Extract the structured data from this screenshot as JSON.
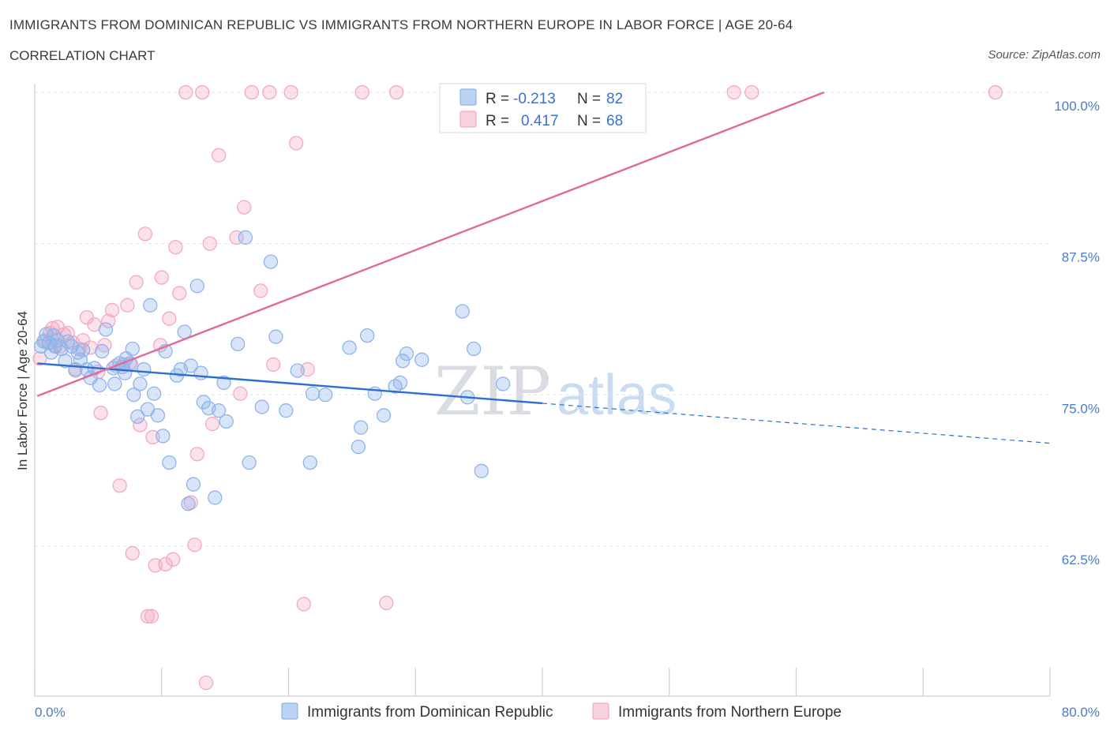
{
  "header": {
    "title": "IMMIGRANTS FROM DOMINICAN REPUBLIC VS IMMIGRANTS FROM NORTHERN EUROPE IN LABOR FORCE | AGE 20-64",
    "subtitle": "CORRELATION CHART",
    "source": "Source: ZipAtlas.com"
  },
  "watermark": {
    "zip": "ZIP",
    "atlas": "atlas"
  },
  "stats": {
    "r_label": "R =",
    "n_label": "N =",
    "rows": [
      {
        "r": "-0.213",
        "n": "82",
        "color": "#8fb4ea"
      },
      {
        "r": "0.417",
        "n": "68",
        "color": "#f2a9c3"
      }
    ]
  },
  "legend": [
    {
      "label": "Immigrants from Dominican Republic",
      "color": "#8fb4ea"
    },
    {
      "label": "Immigrants from Northern Europe",
      "color": "#f2a9c3"
    }
  ],
  "chart_data": {
    "type": "scatter",
    "ylabel": "In Labor Force | Age 20-64",
    "xlim": [
      0,
      80
    ],
    "ylim": [
      50,
      100
    ],
    "x_tick_labels": [
      {
        "v": 0,
        "label": "0.0%"
      },
      {
        "v": 80,
        "label": "80.0%"
      }
    ],
    "y_tick_labels": [
      {
        "v": 100,
        "label": "100.0%"
      },
      {
        "v": 87.5,
        "label": "87.5%"
      },
      {
        "v": 75,
        "label": "75.0%"
      },
      {
        "v": 62.5,
        "label": "62.5%"
      }
    ],
    "grid": true,
    "legend_position": "bottom",
    "series": [
      {
        "name": "Immigrants from Dominican Republic",
        "color": "#8fb4ea",
        "line_color": "#2d6fd0",
        "trend": {
          "x0": 0.2,
          "y0": 77.6,
          "x1": 40,
          "y1": 74.3,
          "dash_to_x": 80,
          "dash_to_y": 71.0
        },
        "points": [
          [
            0.5,
            79.0
          ],
          [
            0.7,
            79.4
          ],
          [
            0.9,
            80.0
          ],
          [
            1.1,
            79.3
          ],
          [
            1.3,
            78.5
          ],
          [
            1.5,
            79.9
          ],
          [
            1.6,
            79.0
          ],
          [
            1.8,
            79.5
          ],
          [
            2.1,
            78.8
          ],
          [
            2.4,
            77.8
          ],
          [
            2.6,
            79.4
          ],
          [
            2.9,
            79.0
          ],
          [
            3.2,
            77.1
          ],
          [
            3.4,
            78.5
          ],
          [
            3.6,
            77.9
          ],
          [
            3.8,
            78.7
          ],
          [
            4.1,
            77.1
          ],
          [
            4.4,
            76.4
          ],
          [
            4.7,
            77.2
          ],
          [
            5.1,
            75.8
          ],
          [
            5.3,
            78.6
          ],
          [
            5.6,
            80.4
          ],
          [
            6.2,
            77.2
          ],
          [
            6.3,
            75.9
          ],
          [
            6.7,
            77.6
          ],
          [
            6.9,
            77.3
          ],
          [
            7.1,
            76.8
          ],
          [
            7.2,
            78.0
          ],
          [
            7.5,
            77.6
          ],
          [
            7.7,
            78.8
          ],
          [
            7.8,
            75.0
          ],
          [
            8.1,
            73.2
          ],
          [
            8.3,
            75.9
          ],
          [
            8.6,
            77.1
          ],
          [
            8.9,
            73.8
          ],
          [
            9.1,
            82.4
          ],
          [
            9.4,
            75.1
          ],
          [
            9.7,
            73.3
          ],
          [
            10.1,
            71.6
          ],
          [
            10.3,
            78.6
          ],
          [
            10.6,
            69.4
          ],
          [
            11.2,
            76.6
          ],
          [
            11.5,
            77.1
          ],
          [
            11.8,
            80.2
          ],
          [
            12.1,
            66.0
          ],
          [
            12.3,
            77.4
          ],
          [
            12.5,
            67.6
          ],
          [
            12.8,
            84.0
          ],
          [
            13.1,
            76.8
          ],
          [
            13.3,
            74.4
          ],
          [
            13.7,
            73.9
          ],
          [
            14.2,
            66.5
          ],
          [
            14.5,
            73.7
          ],
          [
            14.9,
            76.0
          ],
          [
            15.1,
            72.8
          ],
          [
            16.0,
            79.2
          ],
          [
            16.6,
            88.0
          ],
          [
            16.9,
            69.4
          ],
          [
            17.9,
            74.0
          ],
          [
            18.6,
            86.0
          ],
          [
            19.0,
            79.8
          ],
          [
            19.8,
            73.7
          ],
          [
            20.7,
            77.0
          ],
          [
            21.7,
            69.4
          ],
          [
            21.9,
            75.1
          ],
          [
            22.9,
            75.0
          ],
          [
            24.8,
            78.9
          ],
          [
            25.5,
            70.7
          ],
          [
            25.7,
            72.3
          ],
          [
            26.2,
            79.9
          ],
          [
            26.8,
            75.1
          ],
          [
            27.5,
            73.3
          ],
          [
            28.4,
            75.7
          ],
          [
            28.8,
            76.0
          ],
          [
            29.0,
            77.8
          ],
          [
            29.3,
            78.4
          ],
          [
            30.5,
            77.9
          ],
          [
            33.7,
            81.9
          ],
          [
            34.1,
            74.8
          ],
          [
            34.6,
            78.8
          ],
          [
            35.2,
            68.7
          ],
          [
            36.9,
            75.9
          ]
        ]
      },
      {
        "name": "Immigrants from Northern Europe",
        "color": "#f2a9c3",
        "line_color": "#e06b96",
        "trend": {
          "x0": 0.2,
          "y0": 74.9,
          "x1": 62.2,
          "y1": 100
        },
        "points": [
          [
            0.4,
            78.0
          ],
          [
            0.8,
            79.5
          ],
          [
            1.2,
            80.1
          ],
          [
            1.4,
            80.5
          ],
          [
            1.6,
            79.1
          ],
          [
            1.8,
            80.6
          ],
          [
            2.0,
            79.0
          ],
          [
            2.3,
            80.0
          ],
          [
            2.6,
            80.1
          ],
          [
            3.0,
            79.3
          ],
          [
            3.2,
            77.0
          ],
          [
            3.5,
            78.8
          ],
          [
            3.8,
            79.5
          ],
          [
            4.1,
            81.4
          ],
          [
            4.4,
            78.9
          ],
          [
            4.7,
            80.8
          ],
          [
            5.0,
            76.9
          ],
          [
            5.2,
            73.5
          ],
          [
            5.5,
            79.1
          ],
          [
            5.8,
            81.1
          ],
          [
            6.1,
            82.0
          ],
          [
            6.4,
            77.4
          ],
          [
            6.7,
            67.5
          ],
          [
            7.0,
            77.5
          ],
          [
            7.3,
            82.4
          ],
          [
            7.6,
            77.5
          ],
          [
            7.7,
            61.9
          ],
          [
            8.0,
            84.3
          ],
          [
            8.3,
            72.5
          ],
          [
            8.7,
            88.3
          ],
          [
            8.9,
            56.7
          ],
          [
            9.3,
            71.5
          ],
          [
            9.5,
            60.9
          ],
          [
            9.9,
            79.1
          ],
          [
            10.0,
            84.7
          ],
          [
            10.3,
            61.0
          ],
          [
            10.6,
            81.3
          ],
          [
            10.9,
            61.4
          ],
          [
            11.1,
            87.2
          ],
          [
            11.4,
            83.4
          ],
          [
            11.9,
            100.0
          ],
          [
            12.3,
            66.1
          ],
          [
            12.6,
            62.6
          ],
          [
            12.8,
            70.1
          ],
          [
            13.2,
            100.0
          ],
          [
            13.5,
            51.2
          ],
          [
            13.8,
            87.5
          ],
          [
            14.0,
            72.6
          ],
          [
            14.5,
            94.8
          ],
          [
            15.9,
            88.0
          ],
          [
            16.2,
            75.1
          ],
          [
            16.5,
            90.5
          ],
          [
            17.1,
            100.0
          ],
          [
            17.8,
            83.6
          ],
          [
            18.5,
            100.0
          ],
          [
            18.8,
            77.5
          ],
          [
            20.2,
            100.0
          ],
          [
            20.6,
            95.8
          ],
          [
            21.2,
            57.7
          ],
          [
            21.5,
            77.1
          ],
          [
            25.8,
            100.0
          ],
          [
            27.7,
            57.8
          ],
          [
            28.5,
            100.0
          ],
          [
            33.1,
            100.0
          ],
          [
            55.1,
            100.0
          ],
          [
            56.5,
            100.0
          ],
          [
            75.7,
            100.0
          ],
          [
            9.2,
            56.7
          ]
        ]
      }
    ]
  }
}
